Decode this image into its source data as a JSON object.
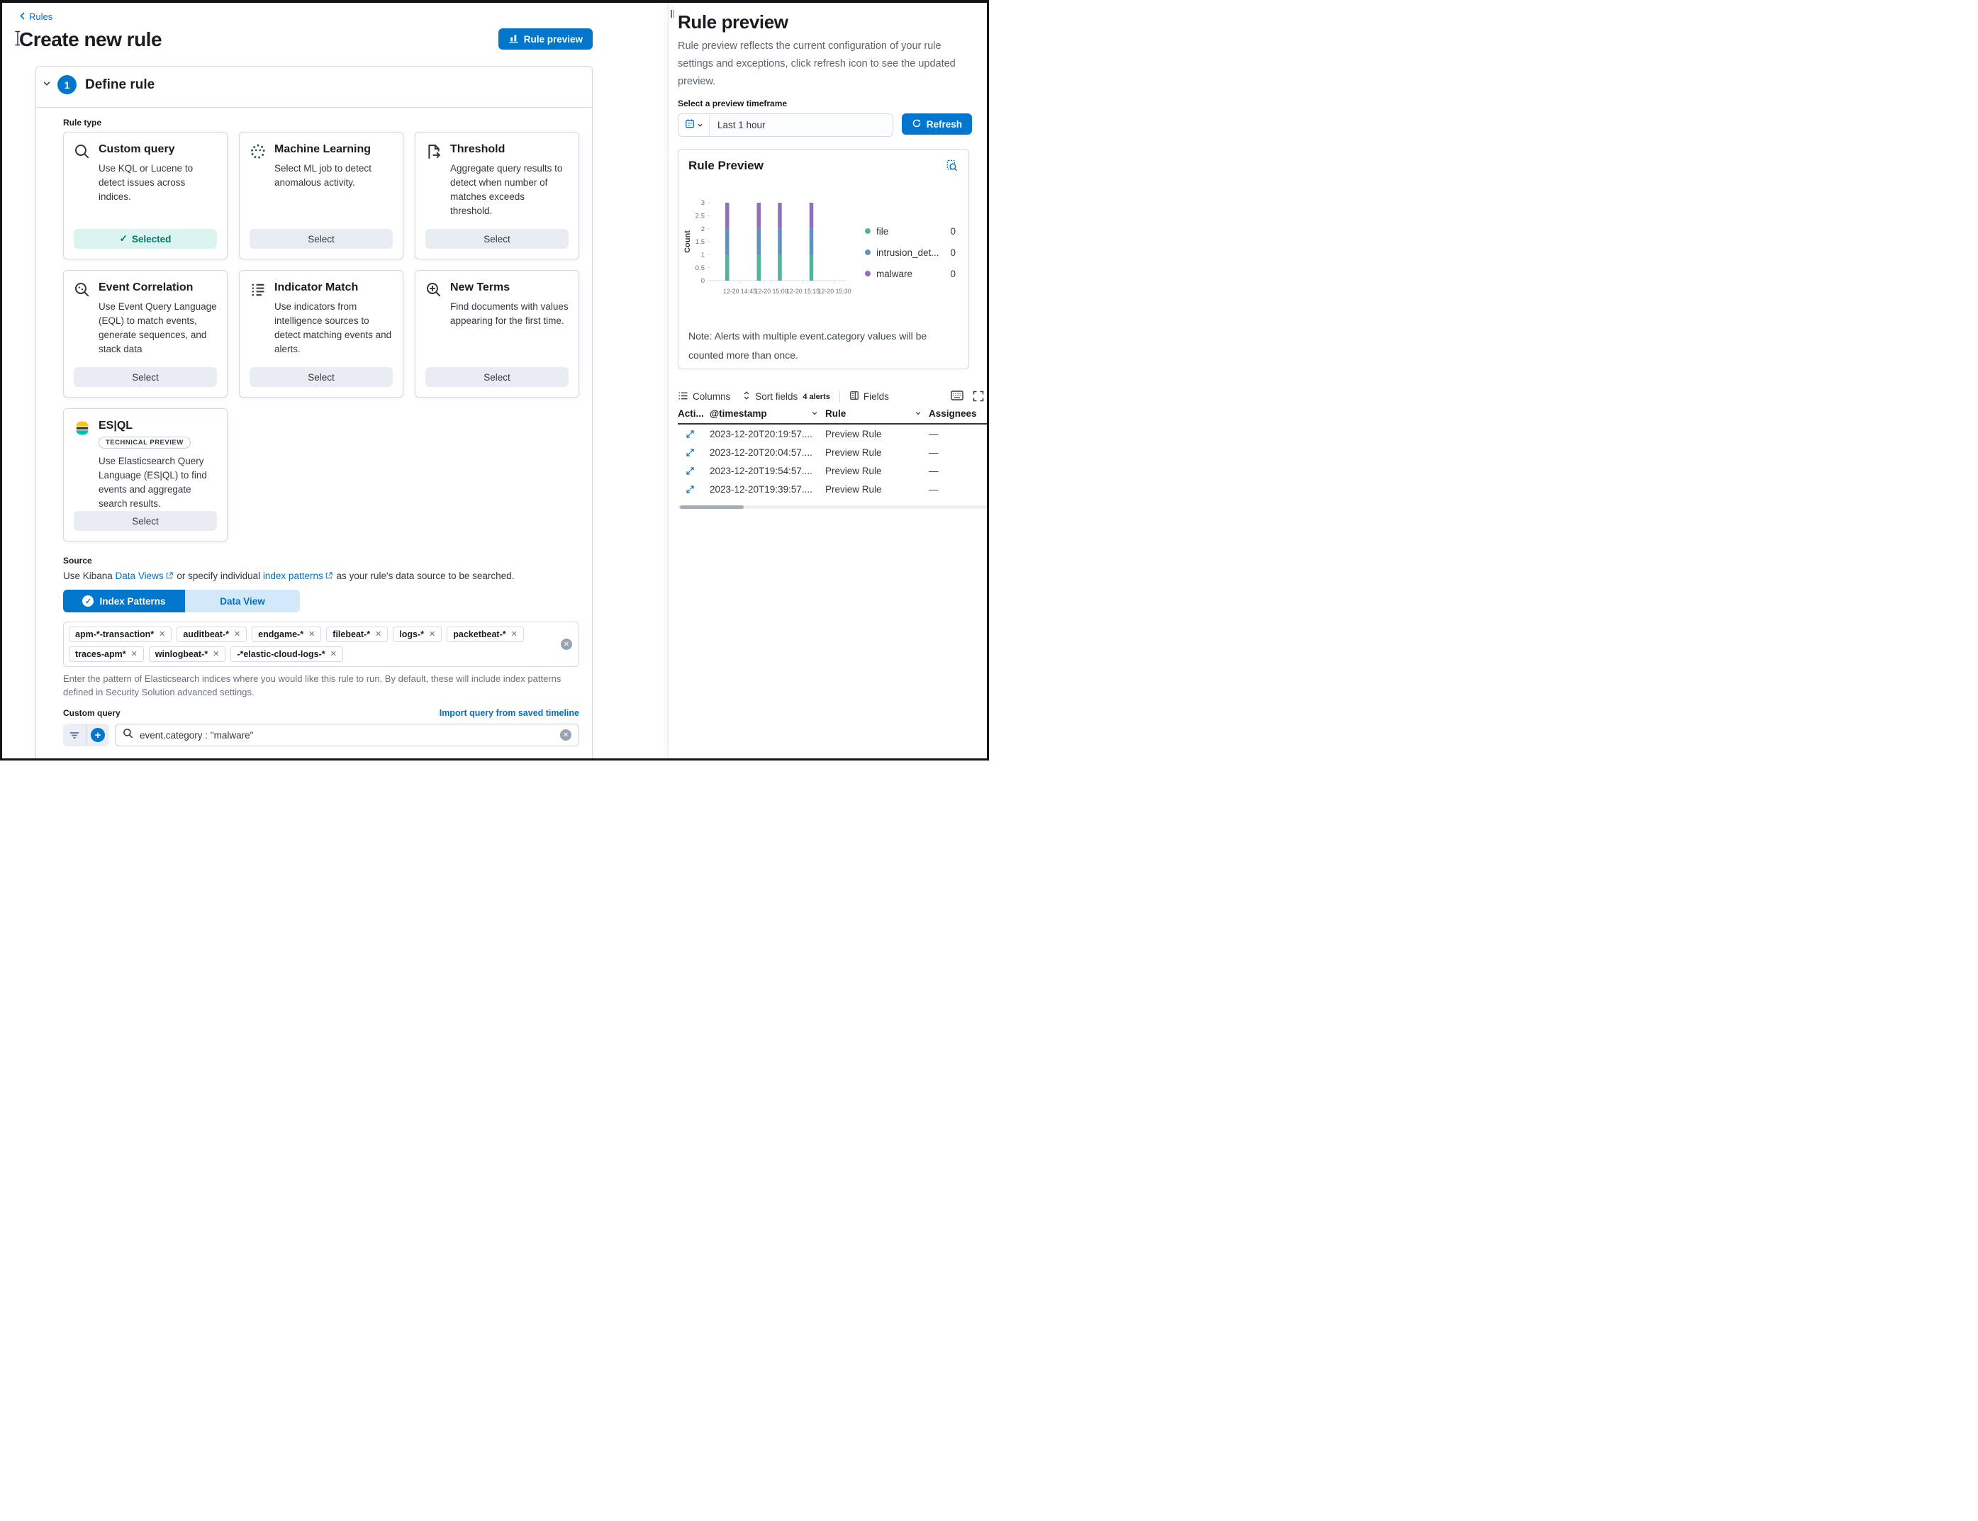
{
  "page": {
    "breadcrumb": "Rules",
    "title": "Create new rule"
  },
  "rule_preview_button": {
    "label": "Rule preview"
  },
  "define_rule": {
    "step_number": "1",
    "title": "Define rule",
    "rule_type_label": "Rule type",
    "cards": [
      {
        "icon": "search-icon",
        "title": "Custom query",
        "description": "Use KQL or Lucene to detect issues across indices.",
        "action": "Selected",
        "selected": true
      },
      {
        "icon": "machine-learning-icon",
        "title": "Machine Learning",
        "description": "Select ML job to detect anomalous activity.",
        "action": "Select"
      },
      {
        "icon": "threshold-icon",
        "title": "Threshold",
        "description": "Aggregate query results to detect when number of matches exceeds threshold.",
        "action": "Select"
      },
      {
        "icon": "event-correlation-icon",
        "title": "Event Correlation",
        "description": "Use Event Query Language (EQL) to match events, generate sequences, and stack data",
        "action": "Select"
      },
      {
        "icon": "indicator-match-icon",
        "title": "Indicator Match",
        "description": "Use indicators from intelligence sources to detect matching events and alerts.",
        "action": "Select"
      },
      {
        "icon": "new-terms-icon",
        "title": "New Terms",
        "description": "Find documents with values appearing for the first time.",
        "action": "Select"
      },
      {
        "icon": "esql-icon",
        "title": "ES|QL",
        "badge": "TECHNICAL PREVIEW",
        "description": "Use Elasticsearch Query Language (ES|QL) to find events and aggregate search results.",
        "action": "Select"
      }
    ],
    "source": {
      "label": "Source",
      "description_parts": [
        "Use Kibana ",
        "Data Views",
        " or specify individual ",
        "index patterns",
        " as your rule's data source to be searched."
      ],
      "tabs": [
        {
          "label": "Index Patterns",
          "active": true
        },
        {
          "label": "Data View",
          "active": false
        }
      ],
      "index_patterns": [
        "apm-*-transaction*",
        "auditbeat-*",
        "endgame-*",
        "filebeat-*",
        "logs-*",
        "packetbeat-*",
        "traces-apm*",
        "winlogbeat-*",
        "-*elastic-cloud-logs-*"
      ],
      "helper_text": "Enter the pattern of Elasticsearch indices where you would like this rule to run. By default, these will include index patterns defined in Security Solution advanced settings."
    },
    "custom_query": {
      "label": "Custom query",
      "import_link": "Import query from saved timeline",
      "query": "event.category : \"malware\""
    }
  },
  "preview_panel": {
    "title": "Rule preview",
    "description": "Rule preview reflects the current configuration of your rule settings and exceptions, click refresh icon to see the updated preview.",
    "timeframe_label": "Select a preview timeframe",
    "timeframe_value": "Last 1 hour",
    "refresh_label": "Refresh",
    "chart_card": {
      "title": "Rule Preview",
      "note": "Note: Alerts with multiple event.category values will be counted more than once."
    },
    "table": {
      "toolbar": {
        "columns": "Columns",
        "sort_fields": "Sort fields",
        "alerts_count": "4 alerts",
        "fields": "Fields"
      },
      "headers": [
        "Acti...",
        "@timestamp",
        "Rule",
        "Assignees"
      ],
      "rows": [
        {
          "timestamp": "2023-12-20T20:19:57....",
          "rule": "Preview Rule",
          "assignees": "—"
        },
        {
          "timestamp": "2023-12-20T20:04:57....",
          "rule": "Preview Rule",
          "assignees": "—"
        },
        {
          "timestamp": "2023-12-20T19:54:57....",
          "rule": "Preview Rule",
          "assignees": "—"
        },
        {
          "timestamp": "2023-12-20T19:39:57....",
          "rule": "Preview Rule",
          "assignees": "—"
        }
      ]
    }
  },
  "chart_data": {
    "type": "bar",
    "stacked": true,
    "title": "Rule Preview",
    "xlabel": "",
    "ylabel": "Count",
    "ylim": [
      0,
      3
    ],
    "y_ticks": [
      0,
      0.5,
      1,
      1.5,
      2,
      2.5,
      3
    ],
    "x_domain": [
      "12-20 14:31",
      "12-20 15:34"
    ],
    "x_tick_labels": [
      "12-20 14:45",
      "12-20 15:00",
      "12-20 15:15",
      "12-20 15:30"
    ],
    "x": [
      "12-20 14:39",
      "12-20 14:54",
      "12-20 15:04",
      "12-20 15:19"
    ],
    "series": [
      {
        "name": "file",
        "color": "#54B399",
        "values": [
          1,
          1,
          1,
          1
        ],
        "legend_count": 0
      },
      {
        "name": "intrusion_det...",
        "color": "#6092C0",
        "values": [
          1,
          1,
          1,
          1
        ],
        "legend_count": 0
      },
      {
        "name": "malware",
        "color": "#9170B8",
        "values": [
          1,
          1,
          1,
          1
        ],
        "legend_count": 0
      }
    ],
    "legend_position": "right",
    "grid": false
  },
  "colors": {
    "primary": "#0077CC",
    "link": "#0071C2",
    "success_bg": "#DCF4F0",
    "success_text": "#007871",
    "border": "#D3DAE6"
  }
}
